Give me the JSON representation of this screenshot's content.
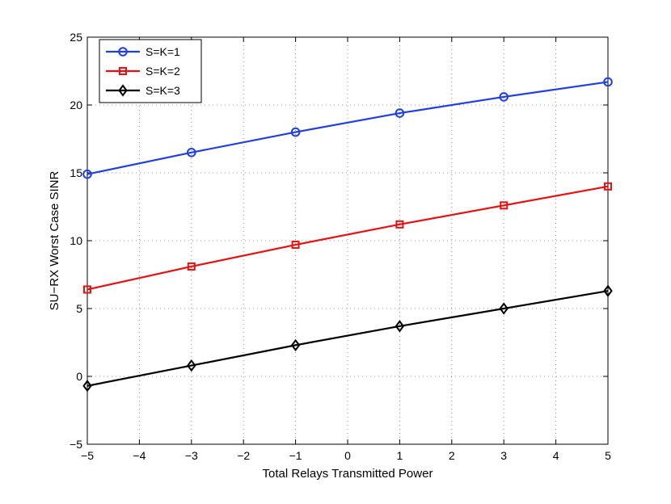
{
  "chart_data": {
    "type": "line",
    "title": "",
    "xlabel": "Total Relays Transmitted Power",
    "ylabel": "SU−RX Worst Case SINR",
    "xlim": [
      -5,
      5
    ],
    "ylim": [
      -5,
      25
    ],
    "xticks": [
      -5,
      -4,
      -3,
      -2,
      -1,
      0,
      1,
      2,
      3,
      4,
      5
    ],
    "xtick_labels": [
      "−5",
      "−4",
      "−3",
      "−2",
      "−1",
      "0",
      "1",
      "2",
      "3",
      "4",
      "5"
    ],
    "yticks": [
      -5,
      0,
      5,
      10,
      15,
      20,
      25
    ],
    "ytick_labels": [
      "−5",
      "0",
      "5",
      "10",
      "15",
      "20",
      "25"
    ],
    "grid": true,
    "legend_position": "top-left",
    "x": [
      -5,
      -3,
      -1,
      1,
      3,
      5
    ],
    "series": [
      {
        "name": "S=K=1",
        "color": "#1f3fe6",
        "marker": "circle",
        "values": [
          14.9,
          16.5,
          18.0,
          19.4,
          20.6,
          21.7
        ]
      },
      {
        "name": "S=K=2",
        "color": "#e81010",
        "marker": "square",
        "values": [
          6.4,
          8.1,
          9.7,
          11.2,
          12.6,
          14.0
        ]
      },
      {
        "name": "S=K=3",
        "color": "#000000",
        "marker": "diamond",
        "values": [
          -0.7,
          0.8,
          2.3,
          3.7,
          5.0,
          6.3
        ]
      }
    ]
  }
}
